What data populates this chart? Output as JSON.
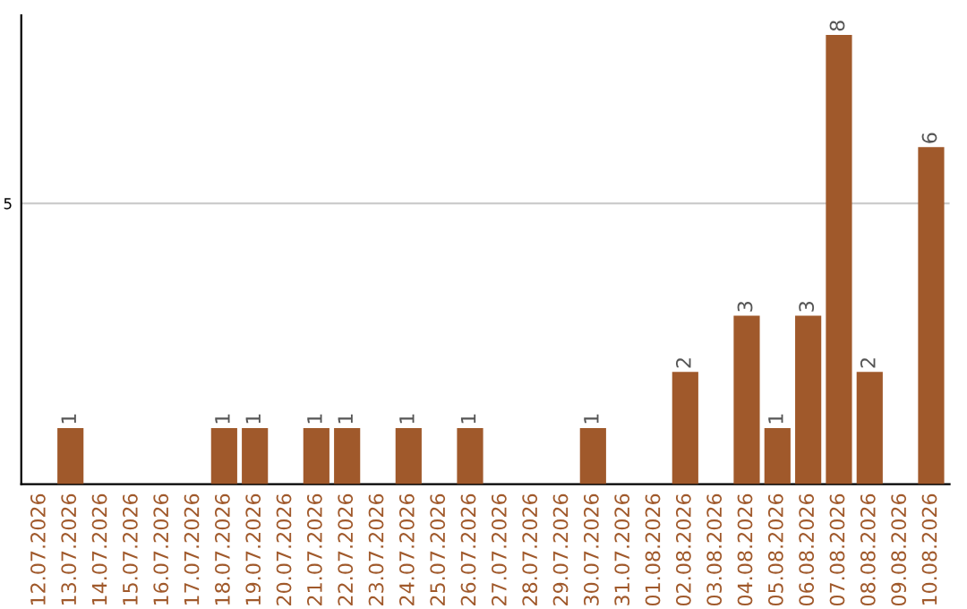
{
  "chart_data": {
    "type": "bar",
    "categories": [
      "12.07.2026",
      "13.07.2026",
      "14.07.2026",
      "15.07.2026",
      "16.07.2026",
      "17.07.2026",
      "18.07.2026",
      "19.07.2026",
      "20.07.2026",
      "21.07.2026",
      "22.07.2026",
      "23.07.2026",
      "24.07.2026",
      "25.07.2026",
      "26.07.2026",
      "27.07.2026",
      "28.07.2026",
      "29.07.2026",
      "30.07.2026",
      "31.07.2026",
      "01.08.2026",
      "02.08.2026",
      "03.08.2026",
      "04.08.2026",
      "05.08.2026",
      "06.08.2026",
      "07.08.2026",
      "08.08.2026",
      "09.08.2026",
      "10.08.2026"
    ],
    "values": [
      0,
      1,
      0,
      0,
      0,
      0,
      1,
      1,
      0,
      1,
      1,
      0,
      1,
      0,
      1,
      0,
      0,
      0,
      1,
      0,
      0,
      2,
      0,
      3,
      1,
      3,
      8,
      2,
      0,
      6
    ],
    "value_labels": [
      null,
      "1",
      null,
      null,
      null,
      null,
      "1",
      "1",
      null,
      "1",
      "1",
      null,
      "1",
      null,
      "1",
      null,
      null,
      null,
      "1",
      null,
      null,
      "2",
      null,
      "3",
      "1",
      "3",
      "8",
      "2",
      null,
      "6"
    ],
    "color": "#a0592b",
    "ylim": [
      0,
      8.35
    ],
    "yticks": [
      5
    ],
    "grid": "y"
  }
}
